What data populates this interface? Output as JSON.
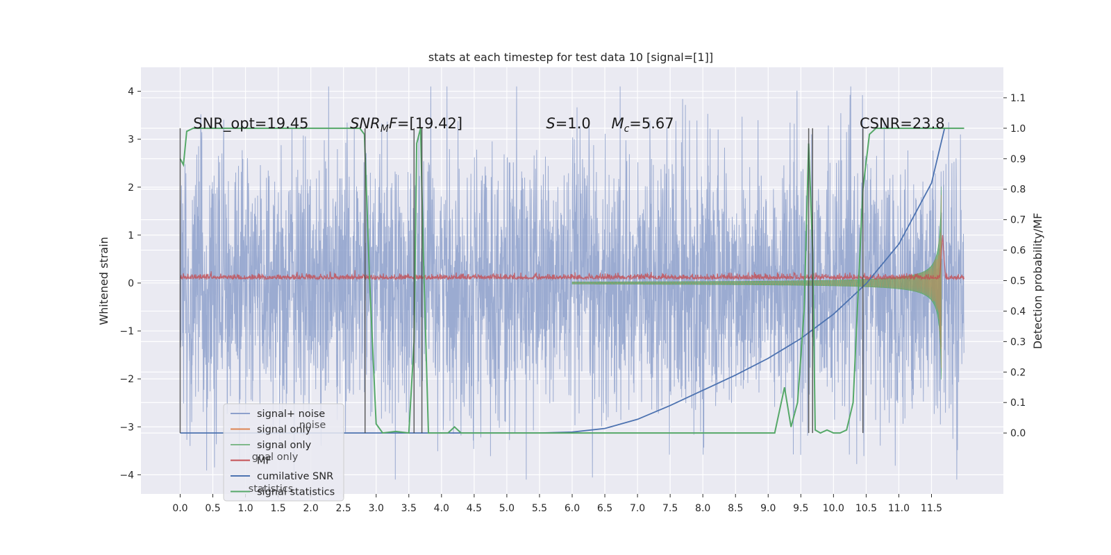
{
  "chart_data": {
    "type": "line",
    "title": "stats at each timestep for test data 10 [signal=[1]]",
    "ylabel": "Whitened strain",
    "y2label": "Detection probability/MF",
    "xlim": [
      -0.6,
      12.6
    ],
    "ylim": [
      -4.4,
      4.5
    ],
    "y2lim": [
      -0.2,
      1.2
    ],
    "x_ticks": [
      0.0,
      0.5,
      1.0,
      1.5,
      2.0,
      2.5,
      3.0,
      3.5,
      4.0,
      4.5,
      5.0,
      5.5,
      6.0,
      6.5,
      7.0,
      7.5,
      8.0,
      8.5,
      9.0,
      9.5,
      10.0,
      10.5,
      11.0,
      11.5
    ],
    "x_tick_labels": [
      "0.0",
      "0.5",
      "1.0",
      "1.5",
      "2.0",
      "2.5",
      "3.0",
      "3.5",
      "4.0",
      "4.5",
      "5.0",
      "5.5",
      "6.0",
      "6.5",
      "7.0",
      "7.5",
      "8.0",
      "8.5",
      "9.0",
      "9.5",
      "10.0",
      "10.5",
      "11.0",
      "11.5"
    ],
    "y_ticks": [
      -4,
      -3,
      -2,
      -1,
      0,
      1,
      2,
      3,
      4
    ],
    "y_tick_labels": [
      "−4",
      "−3",
      "−2",
      "−1",
      "0",
      "1",
      "2",
      "3",
      "4"
    ],
    "y2_ticks": [
      0.0,
      0.1,
      0.2,
      0.3,
      0.4,
      0.5,
      0.6,
      0.7,
      0.8,
      0.9,
      1.0,
      1.1
    ],
    "y2_tick_labels": [
      "0.0",
      "0.1",
      "0.2",
      "0.3",
      "0.4",
      "0.5",
      "0.6",
      "0.7",
      "0.8",
      "0.9",
      "1.0",
      "1.1"
    ],
    "grid": true,
    "legend_placement": "lower-left",
    "annotations": [
      {
        "text": "SNR_opt=19.45",
        "x": 0.2,
        "y": 3.2
      },
      {
        "text": "SNR_MF=[19.42]",
        "x": 2.6,
        "y": 3.2
      },
      {
        "text": "S=1.0",
        "x": 5.6,
        "y": 3.2
      },
      {
        "text": "M_c=5.67",
        "x": 6.6,
        "y": 3.2
      },
      {
        "text": "CSNR=23.8",
        "x": 10.4,
        "y": 3.2
      }
    ],
    "series": [
      {
        "name": "signal+ noise",
        "color": "#8da0cb",
        "kind": "noise",
        "x_range": [
          0.0,
          12.0
        ],
        "amplitude_std": 1.0
      },
      {
        "name": "signal only",
        "color": "#dd8452",
        "kind": "chirp",
        "x_range": [
          6.0,
          11.65
        ],
        "peak": 2.3
      },
      {
        "name": "signal only",
        "color": "#55a868",
        "kind": "chirp-fill",
        "x_range": [
          6.0,
          11.65
        ],
        "peak": 2.3
      },
      {
        "name": "MF",
        "color": "#c44e52",
        "kind": "mf",
        "x_range": [
          0.0,
          12.0
        ],
        "level": 0.08,
        "peak_x": 11.67,
        "peak": 1.0
      },
      {
        "name": "cumilative SNR",
        "color": "#4c72b0",
        "axis": "y2",
        "x": [
          0.0,
          5.5,
          6.0,
          6.5,
          7.0,
          7.5,
          8.0,
          8.5,
          9.0,
          9.5,
          10.0,
          10.5,
          11.0,
          11.5,
          11.7
        ],
        "y": [
          0.0,
          0.0,
          0.003,
          0.015,
          0.045,
          0.09,
          0.14,
          0.19,
          0.245,
          0.31,
          0.39,
          0.49,
          0.62,
          0.82,
          1.0
        ]
      },
      {
        "name": "signal statistics",
        "color": "#55a868",
        "axis": "y2",
        "x": [
          0.0,
          0.05,
          0.1,
          0.2,
          2.75,
          2.82,
          2.9,
          3.0,
          3.1,
          3.3,
          3.5,
          3.58,
          3.62,
          3.68,
          3.72,
          3.8,
          3.9,
          4.1,
          4.2,
          4.3,
          4.5,
          9.1,
          9.25,
          9.35,
          9.45,
          9.55,
          9.62,
          9.68,
          9.72,
          9.8,
          9.9,
          10.0,
          10.1,
          10.2,
          10.3,
          10.45,
          10.55,
          10.65,
          10.8,
          12.0
        ],
        "y": [
          0.9,
          0.88,
          0.99,
          1.0,
          1.0,
          0.98,
          0.5,
          0.03,
          0.0,
          0.005,
          0.0,
          0.3,
          0.95,
          1.0,
          0.6,
          0.0,
          0.0,
          0.0,
          0.02,
          0.0,
          0.0,
          0.0,
          0.15,
          0.02,
          0.1,
          0.4,
          0.95,
          0.6,
          0.01,
          0.0,
          0.01,
          0.0,
          0.0,
          0.01,
          0.1,
          0.8,
          0.98,
          1.0,
          1.0,
          1.0
        ]
      }
    ],
    "vertical_lines_x": [
      0.0,
      2.83,
      3.58,
      3.7,
      9.62,
      9.68,
      10.45
    ]
  },
  "legend": {
    "items": [
      {
        "label": "signal+ noise",
        "color": "#8da0cb"
      },
      {
        "label": "signal only",
        "color": "#dd8452"
      },
      {
        "label": "signal only",
        "color": "#7fb88a"
      },
      {
        "label": "MF",
        "color": "#c44e52"
      },
      {
        "label": "cumilative SNR",
        "color": "#4c72b0"
      },
      {
        "label": "signal statistics",
        "color": "#55a868"
      }
    ],
    "ghost_items": [
      {
        "label": "noise"
      },
      {
        "label": "gnal only"
      },
      {
        "label": "statistics"
      }
    ]
  }
}
